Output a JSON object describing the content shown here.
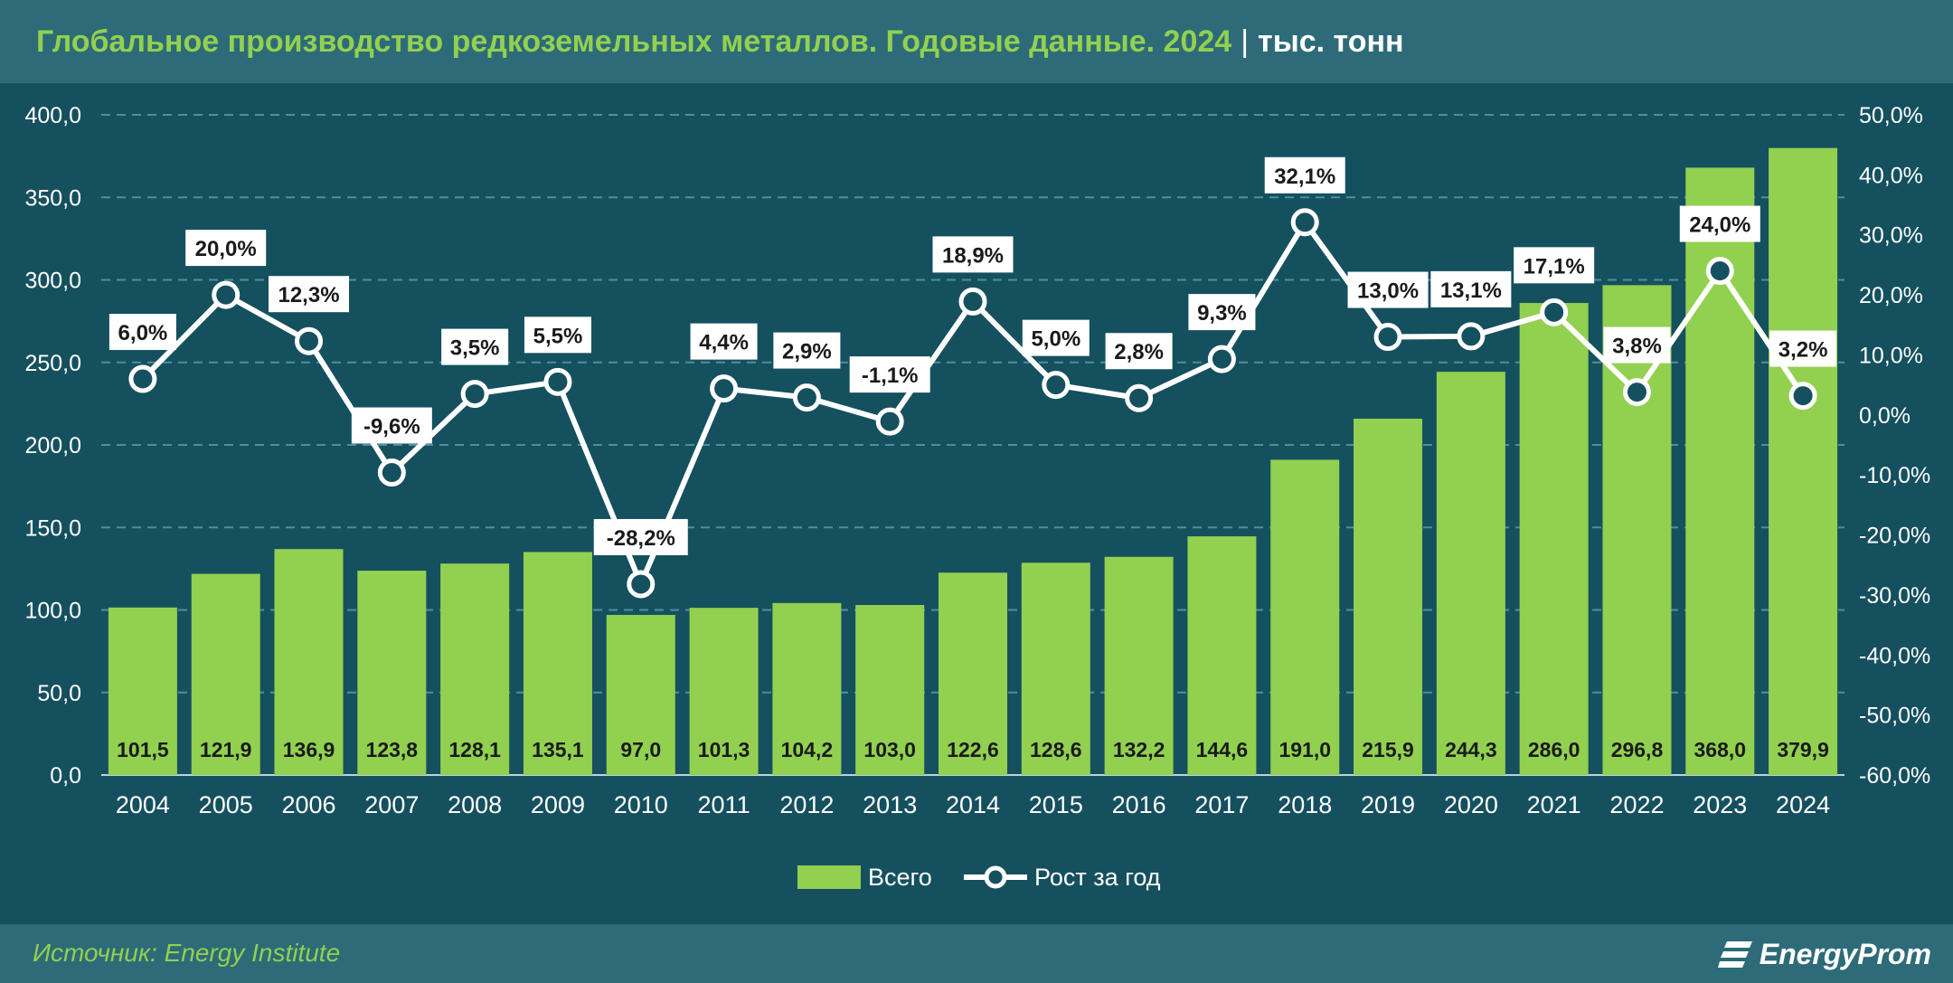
{
  "header": {
    "title": "Глобальное производство редкоземельных металлов. Годовые данные. 2024",
    "separator": "|",
    "unit": "тыс. тонн"
  },
  "footer": {
    "source": "Источник: Energy Institute",
    "logo_text": "EnergyProm",
    "logo_icon": "energyprom-logo-icon"
  },
  "colors": {
    "background": "#15505f",
    "header": "#2e6b79",
    "title": "#92d050",
    "bar": "#92d050",
    "line": "#ffffff"
  },
  "chart_data": {
    "type": "bar+line",
    "title": "Глобальное производство редкоземельных металлов. Годовые данные. 2024",
    "categories": [
      "2004",
      "2005",
      "2006",
      "2007",
      "2008",
      "2009",
      "2010",
      "2011",
      "2012",
      "2013",
      "2014",
      "2015",
      "2016",
      "2017",
      "2018",
      "2019",
      "2020",
      "2021",
      "2022",
      "2023",
      "2024"
    ],
    "series": [
      {
        "name": "Всего",
        "type": "bar",
        "axis": "left",
        "values": [
          101.5,
          121.9,
          136.9,
          123.8,
          128.1,
          135.1,
          97.0,
          101.3,
          104.2,
          103.0,
          122.6,
          128.6,
          132.2,
          144.6,
          191.0,
          215.9,
          244.3,
          286.0,
          296.8,
          368.0,
          379.9
        ],
        "labels": [
          "101,5",
          "121,9",
          "136,9",
          "123,8",
          "128,1",
          "135,1",
          "97,0",
          "101,3",
          "104,2",
          "103,0",
          "122,6",
          "128,6",
          "132,2",
          "144,6",
          "191,0",
          "215,9",
          "244,3",
          "286,0",
          "296,8",
          "368,0",
          "379,9"
        ]
      },
      {
        "name": "Рост за год",
        "type": "line",
        "axis": "right",
        "values": [
          6.0,
          20.0,
          12.3,
          -9.6,
          3.5,
          5.5,
          -28.2,
          4.4,
          2.9,
          -1.1,
          18.9,
          5.0,
          2.8,
          9.3,
          32.1,
          13.0,
          13.1,
          17.1,
          3.8,
          24.0,
          3.2
        ],
        "labels": [
          "6,0%",
          "20,0%",
          "12,3%",
          "-9,6%",
          "3,5%",
          "5,5%",
          "-28,2%",
          "4,4%",
          "2,9%",
          "-1,1%",
          "18,9%",
          "5,0%",
          "2,8%",
          "9,3%",
          "32,1%",
          "13,0%",
          "13,1%",
          "17,1%",
          "3,8%",
          "24,0%",
          "3,2%"
        ]
      }
    ],
    "left_axis": {
      "ylim": [
        0,
        400
      ],
      "ticks": [
        "0,0",
        "50,0",
        "100,0",
        "150,0",
        "200,0",
        "250,0",
        "300,0",
        "350,0",
        "400,0"
      ]
    },
    "right_axis": {
      "ylim": [
        -60,
        50
      ],
      "ticks": [
        "-60,0%",
        "-50,0%",
        "-40,0%",
        "-30,0%",
        "-20,0%",
        "-10,0%",
        "0,0%",
        "10,0%",
        "20,0%",
        "30,0%",
        "40,0%",
        "50,0%"
      ]
    },
    "grid": "dashed-horizontal",
    "legend": "bottom-center"
  }
}
